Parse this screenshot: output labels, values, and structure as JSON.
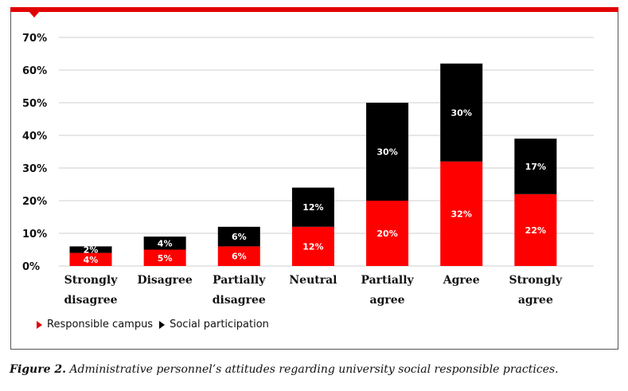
{
  "chart_data": {
    "type": "bar",
    "stacked": true,
    "categories": [
      [
        "Strongly",
        "disagree"
      ],
      [
        "Disagree"
      ],
      [
        "Partially",
        "disagree"
      ],
      [
        "Neutral"
      ],
      [
        "Partially",
        "agree"
      ],
      [
        "Agree"
      ],
      [
        "Strongly",
        "agree"
      ]
    ],
    "series": [
      {
        "name": "Responsible campus",
        "color": "#ff0000",
        "values": [
          4,
          5,
          6,
          12,
          20,
          32,
          22
        ],
        "labels": [
          "4%",
          "5%",
          "6%",
          "12%",
          "20%",
          "32%",
          "22%"
        ]
      },
      {
        "name": "Social participation",
        "color": "#000000",
        "values": [
          2,
          4,
          6,
          12,
          30,
          30,
          17
        ],
        "labels": [
          "2%",
          "4%",
          "6%",
          "12%",
          "30%",
          "30%",
          "17%"
        ]
      }
    ],
    "ylim": [
      0,
      70
    ],
    "yticks": [
      "0%",
      "10%",
      "20%",
      "30%",
      "40%",
      "50%",
      "60%",
      "70%"
    ],
    "grid": true,
    "legend_position": "bottom-left"
  },
  "caption": {
    "figure_label": "Figure 2.",
    "text": " Administrative personnel’s attitudes regarding university social responsible practices."
  }
}
